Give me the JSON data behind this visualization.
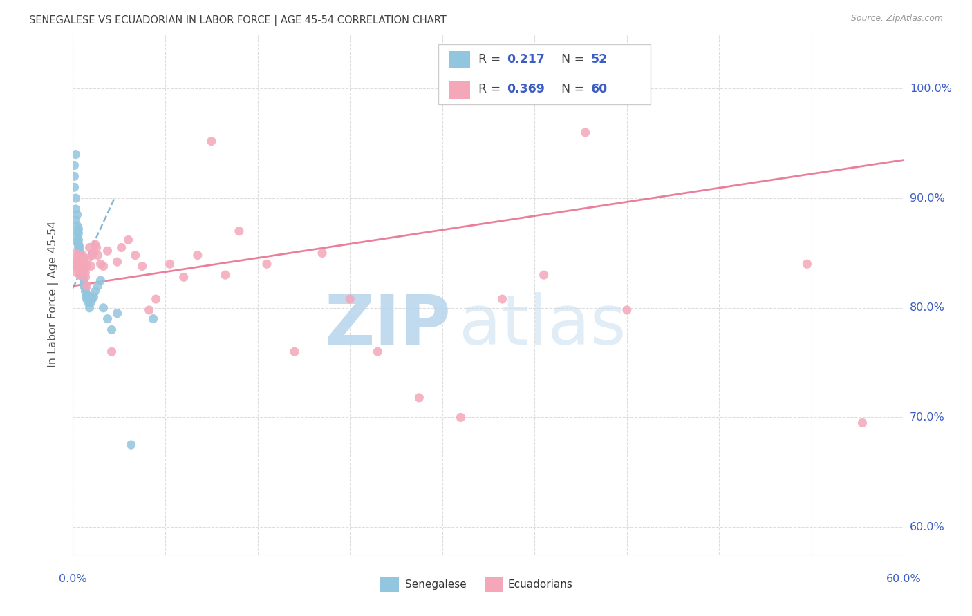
{
  "title": "SENEGALESE VS ECUADORIAN IN LABOR FORCE | AGE 45-54 CORRELATION CHART",
  "source": "Source: ZipAtlas.com",
  "ylabel": "In Labor Force | Age 45-54",
  "legend_blue_r": "0.217",
  "legend_blue_n": "52",
  "legend_pink_r": "0.369",
  "legend_pink_n": "60",
  "blue_color": "#92c5de",
  "pink_color": "#f4a7b9",
  "blue_line_color": "#5b9fc8",
  "pink_line_color": "#e8698a",
  "axis_label_color": "#3b5cc4",
  "title_color": "#404040",
  "source_color": "#999999",
  "grid_color": "#dddddd",
  "watermark_zip_color": "#b8d4ea",
  "watermark_atlas_color": "#c8ddf0",
  "xlim": [
    0.0,
    0.6
  ],
  "ylim": [
    0.575,
    1.05
  ],
  "yticks": [
    0.6,
    0.7,
    0.8,
    0.9,
    1.0
  ],
  "blue_x": [
    0.001,
    0.001,
    0.001,
    0.002,
    0.002,
    0.002,
    0.002,
    0.003,
    0.003,
    0.003,
    0.003,
    0.003,
    0.004,
    0.004,
    0.004,
    0.004,
    0.004,
    0.005,
    0.005,
    0.005,
    0.005,
    0.005,
    0.006,
    0.006,
    0.006,
    0.006,
    0.007,
    0.007,
    0.007,
    0.008,
    0.008,
    0.008,
    0.009,
    0.009,
    0.01,
    0.01,
    0.01,
    0.011,
    0.012,
    0.012,
    0.013,
    0.014,
    0.015,
    0.016,
    0.018,
    0.02,
    0.022,
    0.025,
    0.028,
    0.032,
    0.042,
    0.058
  ],
  "blue_y": [
    0.92,
    0.93,
    0.91,
    0.88,
    0.89,
    0.9,
    0.94,
    0.87,
    0.875,
    0.885,
    0.865,
    0.86,
    0.855,
    0.862,
    0.868,
    0.872,
    0.858,
    0.845,
    0.85,
    0.855,
    0.84,
    0.848,
    0.835,
    0.838,
    0.843,
    0.83,
    0.832,
    0.828,
    0.836,
    0.82,
    0.825,
    0.822,
    0.815,
    0.818,
    0.81,
    0.812,
    0.808,
    0.805,
    0.8,
    0.81,
    0.805,
    0.808,
    0.81,
    0.815,
    0.82,
    0.825,
    0.8,
    0.79,
    0.78,
    0.795,
    0.675,
    0.79
  ],
  "pink_x": [
    0.001,
    0.002,
    0.002,
    0.003,
    0.003,
    0.004,
    0.004,
    0.004,
    0.005,
    0.005,
    0.005,
    0.006,
    0.006,
    0.007,
    0.007,
    0.007,
    0.008,
    0.008,
    0.009,
    0.009,
    0.01,
    0.01,
    0.011,
    0.012,
    0.013,
    0.014,
    0.015,
    0.016,
    0.017,
    0.018,
    0.02,
    0.022,
    0.025,
    0.028,
    0.032,
    0.035,
    0.04,
    0.045,
    0.05,
    0.055,
    0.06,
    0.07,
    0.08,
    0.09,
    0.1,
    0.11,
    0.12,
    0.14,
    0.16,
    0.18,
    0.2,
    0.22,
    0.25,
    0.28,
    0.31,
    0.34,
    0.37,
    0.4,
    0.53,
    0.57
  ],
  "pink_y": [
    0.84,
    0.85,
    0.838,
    0.832,
    0.844,
    0.846,
    0.835,
    0.848,
    0.842,
    0.838,
    0.83,
    0.836,
    0.844,
    0.84,
    0.838,
    0.848,
    0.835,
    0.845,
    0.828,
    0.832,
    0.82,
    0.838,
    0.845,
    0.855,
    0.838,
    0.848,
    0.85,
    0.858,
    0.855,
    0.848,
    0.84,
    0.838,
    0.852,
    0.76,
    0.842,
    0.855,
    0.862,
    0.848,
    0.838,
    0.798,
    0.808,
    0.84,
    0.828,
    0.848,
    0.952,
    0.83,
    0.87,
    0.84,
    0.76,
    0.85,
    0.808,
    0.76,
    0.718,
    0.7,
    0.808,
    0.83,
    0.96,
    0.798,
    0.84,
    0.695
  ],
  "blue_trend_x": [
    0.0,
    0.03
  ],
  "blue_trend_y0": 0.818,
  "blue_trend_y1": 0.9,
  "pink_trend_x": [
    0.0,
    0.6
  ],
  "pink_trend_y0": 0.82,
  "pink_trend_y1": 0.935
}
